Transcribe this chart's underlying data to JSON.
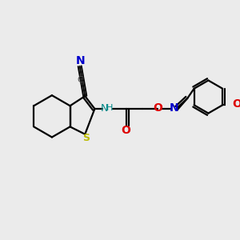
{
  "bg_color": "#ebebeb",
  "atom_colors": {
    "C": "#000000",
    "N": "#0000cc",
    "O": "#dd0000",
    "S": "#bbbb00",
    "H": "#008888",
    "CN_c": "#555555"
  },
  "fig_size": [
    3.0,
    3.0
  ],
  "dpi": 100
}
